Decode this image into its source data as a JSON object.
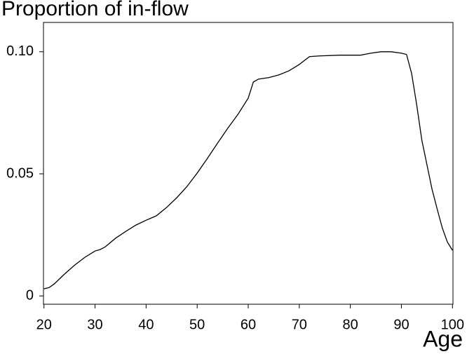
{
  "chart_data": {
    "type": "line",
    "title": "Proportion of in-flow",
    "x_label": "Age",
    "x": [
      20,
      21,
      22,
      24,
      26,
      28,
      30,
      31,
      32,
      34,
      36,
      38,
      40,
      42,
      44,
      46,
      48,
      50,
      52,
      54,
      56,
      58,
      60,
      61,
      62,
      64,
      66,
      68,
      70,
      72,
      74,
      78,
      82,
      84,
      86,
      88,
      90,
      91,
      92,
      93,
      94,
      96,
      97,
      98,
      99,
      100
    ],
    "series": [
      {
        "name": "Proportion of in-flow",
        "color": "#000000",
        "values": [
          0.0029,
          0.0034,
          0.0049,
          0.0089,
          0.0126,
          0.0158,
          0.0184,
          0.019,
          0.0201,
          0.0236,
          0.0264,
          0.029,
          0.031,
          0.0328,
          0.0362,
          0.0402,
          0.0448,
          0.0503,
          0.0563,
          0.0626,
          0.0687,
          0.0744,
          0.081,
          0.0876,
          0.0888,
          0.0894,
          0.0905,
          0.0922,
          0.0948,
          0.098,
          0.0983,
          0.0986,
          0.0986,
          0.0994,
          0.1,
          0.1,
          0.0994,
          0.0989,
          0.0911,
          0.0782,
          0.0638,
          0.0437,
          0.0356,
          0.0279,
          0.0221,
          0.0187
        ]
      }
    ],
    "xlim": [
      19.9,
      100.1
    ],
    "xticks": [
      20,
      30,
      40,
      50,
      60,
      70,
      80,
      90,
      100
    ],
    "ylim": [
      -0.0034,
      0.112
    ],
    "yticks": [
      0,
      0.05,
      {
        "value": 0.1,
        "label": "0.10"
      }
    ]
  }
}
